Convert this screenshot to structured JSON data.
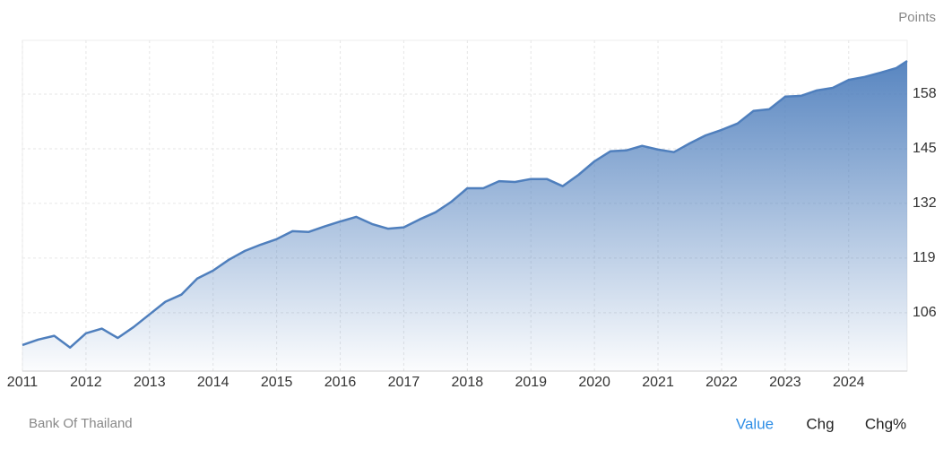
{
  "chart_data": {
    "type": "area",
    "unit_label": "Points",
    "source": "Bank Of Thailand",
    "buttons": [
      "Value",
      "Chg",
      "Chg%"
    ],
    "active_button": 0,
    "color": "#4f7fbd",
    "x": [
      2011,
      2011.25,
      2011.5,
      2011.75,
      2012,
      2012.25,
      2012.5,
      2012.75,
      2013,
      2013.25,
      2013.5,
      2013.75,
      2014,
      2014.25,
      2014.5,
      2014.75,
      2015,
      2015.25,
      2015.5,
      2015.75,
      2016,
      2016.25,
      2016.5,
      2016.75,
      2017,
      2017.25,
      2017.5,
      2017.75,
      2018,
      2018.25,
      2018.5,
      2018.75,
      2019,
      2019.25,
      2019.5,
      2019.75,
      2020,
      2020.25,
      2020.5,
      2020.75,
      2021,
      2021.25,
      2021.5,
      2021.75,
      2022,
      2022.25,
      2022.5,
      2022.75,
      2023,
      2023.25,
      2023.5,
      2023.75,
      2024,
      2024.25,
      2024.5,
      2024.75,
      2024.92
    ],
    "values": [
      98.3,
      99.6,
      100.5,
      97.7,
      101.1,
      102.2,
      100.0,
      102.6,
      105.6,
      108.6,
      110.3,
      114.1,
      116.0,
      118.6,
      120.7,
      122.2,
      123.5,
      125.4,
      125.2,
      126.5,
      127.7,
      128.8,
      127.1,
      126.0,
      126.3,
      128.2,
      129.9,
      132.4,
      135.6,
      135.6,
      137.3,
      137.1,
      137.8,
      137.8,
      136.1,
      138.8,
      142.0,
      144.4,
      144.6,
      145.7,
      144.8,
      144.2,
      146.3,
      148.2,
      149.5,
      151.0,
      154.0,
      154.4,
      157.4,
      157.6,
      158.9,
      159.5,
      161.4,
      162.1,
      163.1,
      164.2,
      165.9
    ],
    "xlim": [
      2011,
      2024.92
    ],
    "xticks": [
      2011,
      2012,
      2013,
      2014,
      2015,
      2016,
      2017,
      2018,
      2019,
      2020,
      2021,
      2022,
      2023,
      2024
    ],
    "ylim": [
      92.1,
      170.8
    ],
    "yticks": [
      106,
      119,
      132,
      145,
      158
    ],
    "grid": true
  }
}
